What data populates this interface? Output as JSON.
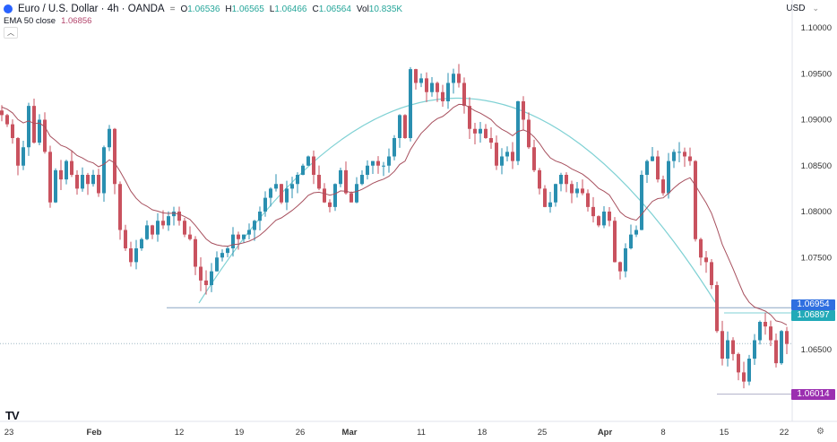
{
  "header": {
    "symbol": "Euro / U.S. Dollar · 4h · OANDA",
    "separator": "=",
    "ohlc": {
      "o_label": "O",
      "o": "1.06536",
      "h_label": "H",
      "h": "1.06565",
      "l_label": "L",
      "l": "1.06466",
      "c_label": "C",
      "c": "1.06564",
      "vol_label": "Vol",
      "vol": "10.835K"
    },
    "ema_label": "EMA 50 close",
    "ema_value": "1.06856",
    "collapse_icon": "chevron-up-icon",
    "currency": "USD",
    "currency_caret": "⌄"
  },
  "colors": {
    "up": "#2a8fb0",
    "down": "#c9525f",
    "ema": "#a7505e",
    "arc": "#7fd1d4",
    "hline": "#8aa6c4",
    "badge_1": "#2f6fe0",
    "badge_2": "#22aab8",
    "badge_3": "#9b2fb0"
  },
  "y_axis": {
    "labels": [
      "1.10000",
      "1.09500",
      "1.09000",
      "1.08500",
      "1.08000",
      "1.07500",
      "1.07000",
      "1.06500"
    ],
    "badges": [
      {
        "value": "1.06954",
        "color": "#2f6fe0"
      },
      {
        "value": "1.06897",
        "color": "#22aab8"
      },
      {
        "value": "1.06014",
        "color": "#9b2fb0"
      }
    ]
  },
  "x_axis": {
    "labels": [
      {
        "t": "23",
        "bold": false
      },
      {
        "t": "Feb",
        "bold": true
      },
      {
        "t": "12",
        "bold": false
      },
      {
        "t": "19",
        "bold": false
      },
      {
        "t": "26",
        "bold": false
      },
      {
        "t": "Mar",
        "bold": true
      },
      {
        "t": "11",
        "bold": false
      },
      {
        "t": "18",
        "bold": false
      },
      {
        "t": "25",
        "bold": false
      },
      {
        "t": "Apr",
        "bold": true
      },
      {
        "t": "8",
        "bold": false
      },
      {
        "t": "15",
        "bold": false
      },
      {
        "t": "22",
        "bold": false
      }
    ]
  },
  "footer": {
    "logo": "TV",
    "settings_icon": "gear-icon"
  },
  "chart_data": {
    "type": "candlestick",
    "title": "Euro / U.S. Dollar · 4h · OANDA",
    "timeframe": "4h",
    "ylabel": "USD",
    "ylim": [
      1.059,
      1.101
    ],
    "x_ticks": [
      "23",
      "Feb",
      "12",
      "19",
      "26",
      "Mar",
      "11",
      "18",
      "25",
      "Apr",
      "8",
      "15",
      "22"
    ],
    "y_ticks": [
      1.1,
      1.095,
      1.09,
      1.085,
      1.08,
      1.075,
      1.07,
      1.065
    ],
    "last_bar": {
      "open": 1.06536,
      "high": 1.06565,
      "low": 1.06466,
      "close": 1.06564,
      "volume": "10.835K"
    },
    "indicators": [
      {
        "name": "EMA 50 close",
        "value": 1.06856
      }
    ],
    "horizontal_lines": [
      1.06954,
      1.06897,
      1.06014
    ],
    "current_price_dotted": 1.06564,
    "annotations": [
      "Rounded top arc from ~Feb 14 to ~Apr 12, peak ~1.0985 near Mar 14"
    ],
    "close_path": [
      [
        0,
        1.0905
      ],
      [
        6,
        1.0895
      ],
      [
        12,
        1.088
      ],
      [
        18,
        1.085
      ],
      [
        24,
        1.087
      ],
      [
        30,
        1.0915
      ],
      [
        36,
        1.0875
      ],
      [
        42,
        1.09
      ],
      [
        48,
        1.0865
      ],
      [
        54,
        1.081
      ],
      [
        60,
        1.0845
      ],
      [
        66,
        1.0835
      ],
      [
        72,
        1.0855
      ],
      [
        78,
        1.084
      ],
      [
        84,
        1.0825
      ],
      [
        90,
        1.084
      ],
      [
        96,
        1.083
      ],
      [
        102,
        1.084
      ],
      [
        108,
        1.082
      ],
      [
        114,
        1.087
      ],
      [
        120,
        1.089
      ],
      [
        126,
        1.083
      ],
      [
        132,
        1.078
      ],
      [
        138,
        1.076
      ],
      [
        144,
        1.0745
      ],
      [
        150,
        1.076
      ],
      [
        156,
        1.077
      ],
      [
        162,
        1.0785
      ],
      [
        168,
        1.0775
      ],
      [
        174,
        1.079
      ],
      [
        180,
        1.0785
      ],
      [
        186,
        1.0795
      ],
      [
        192,
        1.08
      ],
      [
        198,
        1.079
      ],
      [
        204,
        1.0775
      ],
      [
        210,
        1.077
      ],
      [
        216,
        1.074
      ],
      [
        222,
        1.0725
      ],
      [
        228,
        1.072
      ],
      [
        234,
        1.0735
      ],
      [
        240,
        1.075
      ],
      [
        246,
        1.0755
      ],
      [
        252,
        1.076
      ],
      [
        258,
        1.0775
      ],
      [
        264,
        1.077
      ],
      [
        270,
        1.0775
      ],
      [
        276,
        1.078
      ],
      [
        282,
        1.079
      ],
      [
        288,
        1.08
      ],
      [
        294,
        1.0815
      ],
      [
        300,
        1.0825
      ],
      [
        306,
        1.083
      ],
      [
        312,
        1.081
      ],
      [
        318,
        1.0825
      ],
      [
        324,
        1.083
      ],
      [
        330,
        1.084
      ],
      [
        336,
        1.085
      ],
      [
        342,
        1.086
      ],
      [
        348,
        1.084
      ],
      [
        354,
        1.0825
      ],
      [
        360,
        1.081
      ],
      [
        366,
        1.0805
      ],
      [
        372,
        1.083
      ],
      [
        378,
        1.0845
      ],
      [
        384,
        1.082
      ],
      [
        390,
        1.081
      ],
      [
        396,
        1.083
      ],
      [
        402,
        1.084
      ],
      [
        408,
        1.085
      ],
      [
        414,
        1.0855
      ],
      [
        420,
        1.085
      ],
      [
        426,
        1.085
      ],
      [
        432,
        1.086
      ],
      [
        438,
        1.088
      ],
      [
        444,
        1.0905
      ],
      [
        450,
        1.088
      ],
      [
        456,
        1.0955
      ],
      [
        462,
        1.094
      ],
      [
        468,
        1.0945
      ],
      [
        474,
        1.093
      ],
      [
        480,
        1.094
      ],
      [
        486,
        1.093
      ],
      [
        492,
        1.092
      ],
      [
        498,
        1.094
      ],
      [
        504,
        1.095
      ],
      [
        510,
        1.094
      ],
      [
        516,
        1.0915
      ],
      [
        522,
        1.089
      ],
      [
        528,
        1.0885
      ],
      [
        534,
        1.089
      ],
      [
        540,
        1.088
      ],
      [
        546,
        1.0875
      ],
      [
        552,
        1.085
      ],
      [
        558,
        1.086
      ],
      [
        564,
        1.0865
      ],
      [
        570,
        1.0855
      ],
      [
        576,
        1.092
      ],
      [
        582,
        1.09
      ],
      [
        588,
        1.087
      ],
      [
        594,
        1.0845
      ],
      [
        600,
        1.0825
      ],
      [
        606,
        1.0805
      ],
      [
        612,
        1.081
      ],
      [
        618,
        1.083
      ],
      [
        624,
        1.084
      ],
      [
        630,
        1.083
      ],
      [
        636,
        1.082
      ],
      [
        642,
        1.0825
      ],
      [
        648,
        1.082
      ],
      [
        654,
        1.0805
      ],
      [
        660,
        1.0795
      ],
      [
        666,
        1.0785
      ],
      [
        672,
        1.08
      ],
      [
        678,
        1.079
      ],
      [
        684,
        1.0745
      ],
      [
        690,
        1.0735
      ],
      [
        696,
        1.076
      ],
      [
        702,
        1.0775
      ],
      [
        708,
        1.078
      ],
      [
        714,
        1.084
      ],
      [
        720,
        1.0855
      ],
      [
        726,
        1.086
      ],
      [
        732,
        1.0835
      ],
      [
        738,
        1.082
      ],
      [
        744,
        1.0855
      ],
      [
        750,
        1.0865
      ],
      [
        756,
        1.0865
      ],
      [
        762,
        1.086
      ],
      [
        768,
        1.0855
      ],
      [
        774,
        1.077
      ],
      [
        780,
        1.075
      ],
      [
        786,
        1.0745
      ],
      [
        792,
        1.072
      ],
      [
        798,
        1.067
      ],
      [
        804,
        1.064
      ],
      [
        810,
        1.066
      ],
      [
        816,
        1.0645
      ],
      [
        822,
        1.0625
      ],
      [
        828,
        1.0615
      ],
      [
        834,
        1.064
      ],
      [
        840,
        1.066
      ],
      [
        846,
        1.068
      ],
      [
        852,
        1.0675
      ],
      [
        858,
        1.066
      ],
      [
        864,
        1.0635
      ],
      [
        870,
        1.067
      ],
      [
        876,
        1.0656
      ]
    ]
  }
}
